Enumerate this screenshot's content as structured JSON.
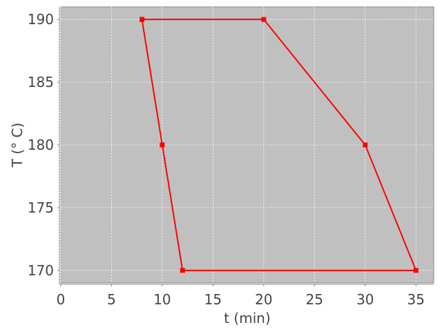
{
  "chart_data": {
    "type": "line",
    "title": "",
    "xlabel": "t (min)",
    "ylabel": "T (° C)",
    "xlim": [
      0,
      36.75
    ],
    "ylim": [
      169,
      191
    ],
    "xticks": [
      0,
      5,
      10,
      15,
      20,
      25,
      30,
      35
    ],
    "yticks": [
      170,
      175,
      180,
      185,
      190
    ],
    "grid": true,
    "plot_background": "#c0c0c0",
    "series": [
      {
        "color": "#ff0000",
        "marker": "square",
        "x": [
          8,
          20,
          30,
          35,
          12,
          10,
          8
        ],
        "y": [
          190,
          190,
          180,
          170,
          170,
          180,
          190
        ]
      }
    ]
  }
}
